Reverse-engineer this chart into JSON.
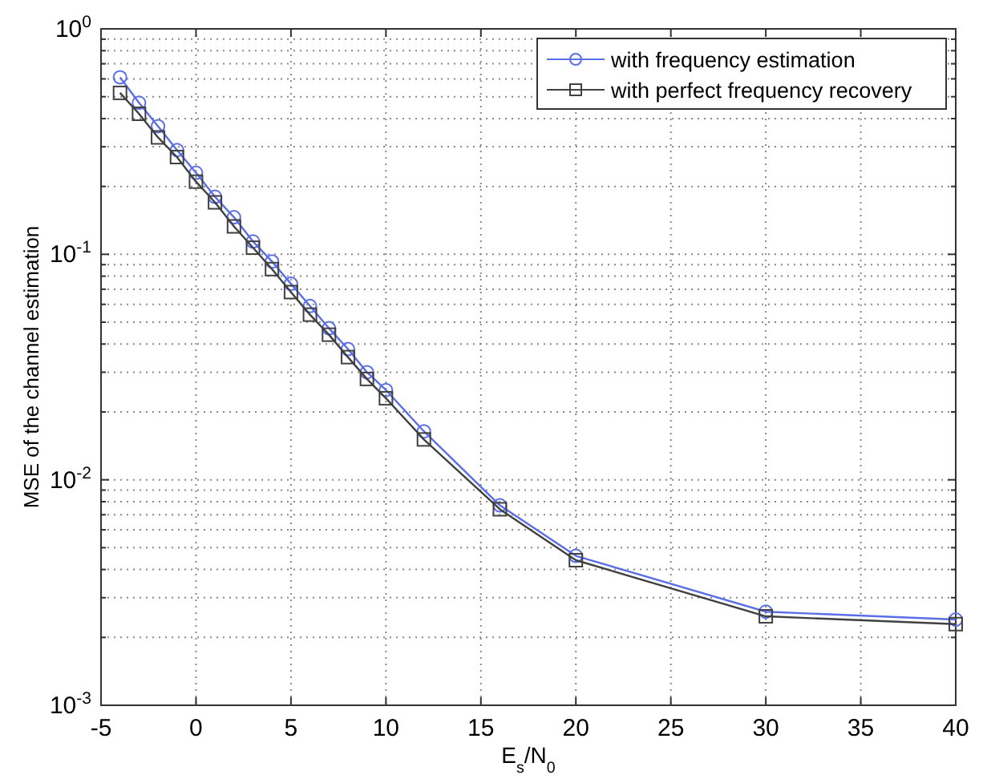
{
  "chart_data": {
    "type": "line",
    "xlabel": "E$_{s}$/N$_{0}$",
    "ylabel": "MSE of the channel estimation",
    "x": [
      -4,
      -3,
      -2,
      -1,
      0,
      1,
      2,
      3,
      4,
      5,
      6,
      7,
      8,
      9,
      10,
      12,
      16,
      20,
      30,
      40
    ],
    "series": [
      {
        "name": "with frequency estimation",
        "color": "#5a6ee6",
        "marker": "circle",
        "values": [
          0.61,
          0.47,
          0.37,
          0.29,
          0.23,
          0.18,
          0.146,
          0.114,
          0.093,
          0.074,
          0.059,
          0.047,
          0.038,
          0.03,
          0.025,
          0.0164,
          0.0077,
          0.0046,
          0.0026,
          0.0024
        ]
      },
      {
        "name": "with perfect frequency recovery",
        "color": "#404040",
        "marker": "square",
        "values": [
          0.52,
          0.42,
          0.33,
          0.27,
          0.21,
          0.17,
          0.133,
          0.107,
          0.086,
          0.068,
          0.054,
          0.044,
          0.035,
          0.028,
          0.023,
          0.0151,
          0.0074,
          0.0044,
          0.00248,
          0.00229
        ]
      }
    ],
    "log": "y",
    "xlim": [
      -5,
      40
    ],
    "xticks": [
      -5,
      0,
      5,
      10,
      15,
      20,
      25,
      30,
      35,
      40
    ],
    "ylim": [
      0.001,
      1
    ],
    "yticks": [
      {
        "value": 0.001,
        "label": "10$^{-3}$"
      },
      {
        "value": 0.002,
        "label": null
      },
      {
        "value": 0.003,
        "label": null
      },
      {
        "value": 0.004,
        "label": null
      },
      {
        "value": 0.005,
        "label": null
      },
      {
        "value": 0.006,
        "label": null
      },
      {
        "value": 0.007,
        "label": null
      },
      {
        "value": 0.008,
        "label": null
      },
      {
        "value": 0.009,
        "label": null
      },
      {
        "value": 0.01,
        "label": "10$^{-2}$"
      },
      {
        "value": 0.02,
        "label": null
      },
      {
        "value": 0.03,
        "label": null
      },
      {
        "value": 0.04,
        "label": null
      },
      {
        "value": 0.05,
        "label": null
      },
      {
        "value": 0.06,
        "label": null
      },
      {
        "value": 0.07,
        "label": null
      },
      {
        "value": 0.08,
        "label": null
      },
      {
        "value": 0.09,
        "label": null
      },
      {
        "value": 0.1,
        "label": "10$^{-1}$"
      },
      {
        "value": 0.2,
        "label": null
      },
      {
        "value": 0.3,
        "label": null
      },
      {
        "value": 0.4,
        "label": null
      },
      {
        "value": 0.5,
        "label": null
      },
      {
        "value": 0.6,
        "label": null
      },
      {
        "value": 0.7,
        "label": null
      },
      {
        "value": 0.8,
        "label": null
      },
      {
        "value": 0.9,
        "label": null
      },
      {
        "value": 1,
        "label": "10$^{0}$"
      }
    ],
    "grid": true,
    "legend": "top right",
    "line_style": "solid"
  }
}
